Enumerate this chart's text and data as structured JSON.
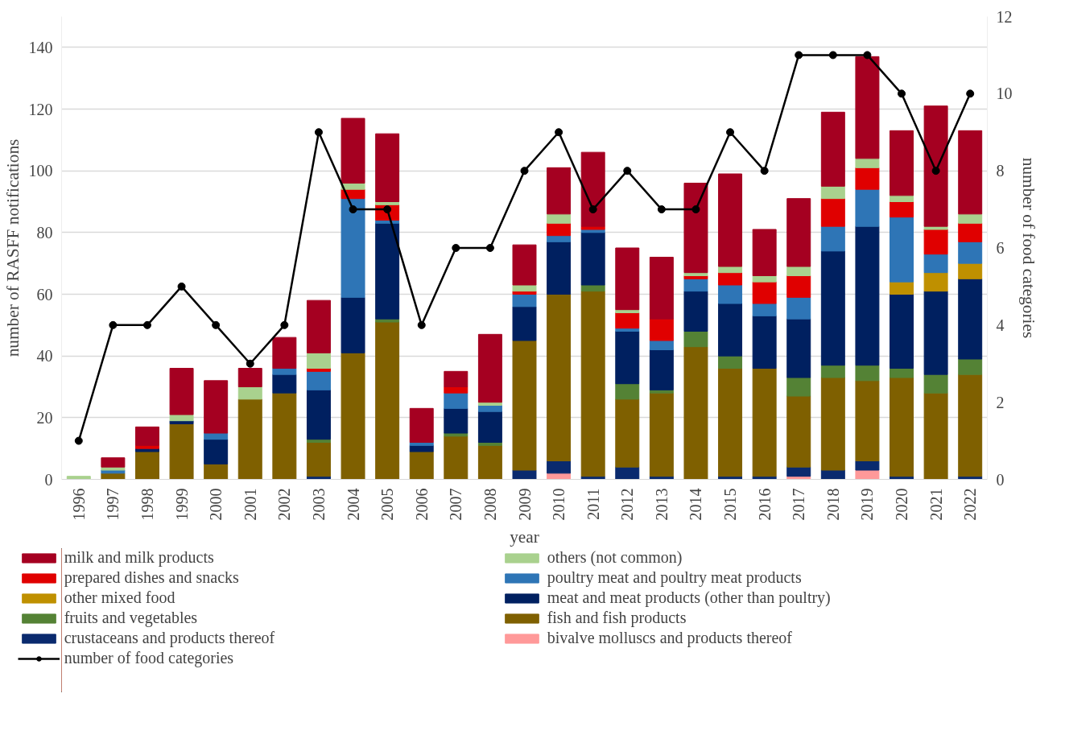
{
  "chart_data": {
    "type": "bar",
    "stacked": true,
    "xlabel": "year",
    "ylabel": "number of RASFF notifications",
    "y2label": "number of food categories",
    "categories": [
      "1996",
      "1997",
      "1998",
      "1999",
      "2000",
      "2001",
      "2002",
      "2003",
      "2004",
      "2005",
      "2006",
      "2007",
      "2008",
      "2009",
      "2010",
      "2011",
      "2012",
      "2013",
      "2014",
      "2015",
      "2016",
      "2017",
      "2018",
      "2019",
      "2020",
      "2021",
      "2022"
    ],
    "ylim": [
      0,
      150
    ],
    "yticks": [
      0,
      20,
      40,
      60,
      80,
      100,
      120,
      140
    ],
    "y2lim": [
      0,
      12
    ],
    "y2ticks": [
      0,
      2,
      4,
      6,
      8,
      10,
      12
    ],
    "grid": "y",
    "legend": "bottom",
    "series": [
      {
        "name": "bivalve molluscs and products thereof",
        "color": "#ff9999",
        "values": [
          null,
          null,
          null,
          null,
          null,
          null,
          null,
          null,
          null,
          null,
          null,
          null,
          null,
          null,
          2,
          null,
          null,
          null,
          null,
          null,
          null,
          1,
          null,
          3,
          null,
          null,
          null
        ]
      },
      {
        "name": "crustaceans and products thereof",
        "color": "#0a2a6e",
        "values": [
          null,
          null,
          null,
          null,
          null,
          null,
          null,
          1,
          null,
          null,
          null,
          null,
          null,
          3,
          4,
          1,
          4,
          1,
          null,
          1,
          1,
          3,
          3,
          3,
          1,
          null,
          1
        ]
      },
      {
        "name": "fish and fish products",
        "color": "#7f6000",
        "values": [
          null,
          2,
          9,
          18,
          5,
          26,
          28,
          11,
          41,
          51,
          9,
          14,
          11,
          42,
          54,
          60,
          22,
          27,
          43,
          35,
          35,
          23,
          30,
          26,
          32,
          28,
          33
        ]
      },
      {
        "name": "fruits and vegetables",
        "color": "#548235",
        "values": [
          null,
          null,
          null,
          null,
          null,
          null,
          null,
          1,
          null,
          1,
          null,
          1,
          1,
          null,
          null,
          2,
          5,
          1,
          5,
          4,
          null,
          6,
          4,
          5,
          3,
          6,
          5
        ]
      },
      {
        "name": "meat and meat products (other than poultry)",
        "color": "#002060",
        "values": [
          null,
          null,
          1,
          1,
          8,
          null,
          6,
          16,
          18,
          31,
          2,
          8,
          10,
          11,
          17,
          17,
          17,
          13,
          13,
          17,
          17,
          19,
          37,
          45,
          24,
          27,
          26
        ]
      },
      {
        "name": "other mixed food",
        "color": "#bf9000",
        "values": [
          null,
          null,
          null,
          null,
          null,
          null,
          null,
          null,
          null,
          null,
          null,
          null,
          null,
          null,
          null,
          null,
          null,
          null,
          null,
          null,
          null,
          null,
          null,
          null,
          4,
          6,
          5
        ]
      },
      {
        "name": "poultry meat and poultry meat products",
        "color": "#2e75b6",
        "values": [
          null,
          1,
          null,
          null,
          2,
          null,
          2,
          6,
          32,
          1,
          1,
          5,
          2,
          4,
          2,
          1,
          1,
          3,
          4,
          6,
          4,
          7,
          8,
          12,
          21,
          6,
          7
        ]
      },
      {
        "name": "prepared dishes and snacks",
        "color": "#e00000",
        "values": [
          null,
          null,
          1,
          null,
          null,
          null,
          null,
          1,
          3,
          5,
          null,
          2,
          null,
          1,
          4,
          1,
          5,
          7,
          1,
          4,
          7,
          7,
          9,
          7,
          5,
          8,
          6
        ]
      },
      {
        "name": "others (not common)",
        "color": "#a9d18e",
        "values": [
          1,
          1,
          null,
          2,
          null,
          4,
          null,
          5,
          2,
          1,
          null,
          null,
          1,
          2,
          3,
          null,
          1,
          null,
          1,
          2,
          2,
          3,
          4,
          3,
          2,
          1,
          3
        ]
      },
      {
        "name": "milk and milk products",
        "color": "#a50021",
        "values": [
          null,
          3,
          6,
          15,
          17,
          6,
          10,
          17,
          21,
          22,
          11,
          5,
          22,
          13,
          15,
          24,
          20,
          20,
          29,
          30,
          15,
          22,
          24,
          33,
          21,
          39,
          27
        ]
      },
      {
        "name": "number of food categories",
        "type": "line",
        "axis": "y2",
        "color": "#000000",
        "marker": "circle",
        "values": [
          1,
          4,
          4,
          5,
          4,
          3,
          4,
          9,
          7,
          7,
          4,
          6,
          6,
          8,
          9,
          7,
          8,
          7,
          7,
          9,
          8,
          11,
          11,
          11,
          10,
          8,
          10
        ]
      }
    ]
  }
}
